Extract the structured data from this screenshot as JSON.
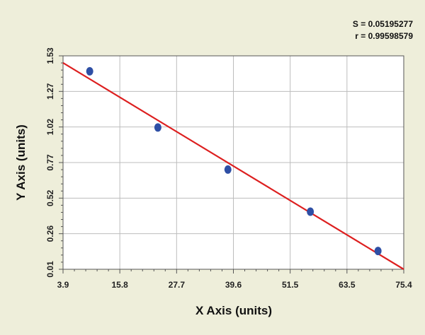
{
  "chart_data": {
    "type": "scatter",
    "title": "",
    "xlabel": "X Axis (units)",
    "ylabel": "Y Axis (units)",
    "xlim": [
      3.9,
      75.4
    ],
    "ylim": [
      0.01,
      1.53
    ],
    "x_ticks": [
      "3.9",
      "15.8",
      "27.7",
      "39.6",
      "51.5",
      "63.5",
      "75.4"
    ],
    "y_ticks": [
      "0.01",
      "0.26",
      "0.52",
      "0.77",
      "1.02",
      "1.27",
      "1.53"
    ],
    "grid": true,
    "legend": "none",
    "stats": {
      "s_label": "S = 0.05195277",
      "r_label": "r = 0.99598579"
    },
    "series": [
      {
        "x": [
          9.5,
          23.8,
          38.5,
          55.8,
          70.0
        ],
        "y": [
          1.42,
          1.02,
          0.72,
          0.42,
          0.14
        ],
        "color": "#2e4fa5"
      }
    ],
    "fit_line": {
      "x": [
        3.9,
        75.4
      ],
      "y": [
        1.48,
        0.01
      ],
      "color": "#dd1f1f"
    }
  }
}
